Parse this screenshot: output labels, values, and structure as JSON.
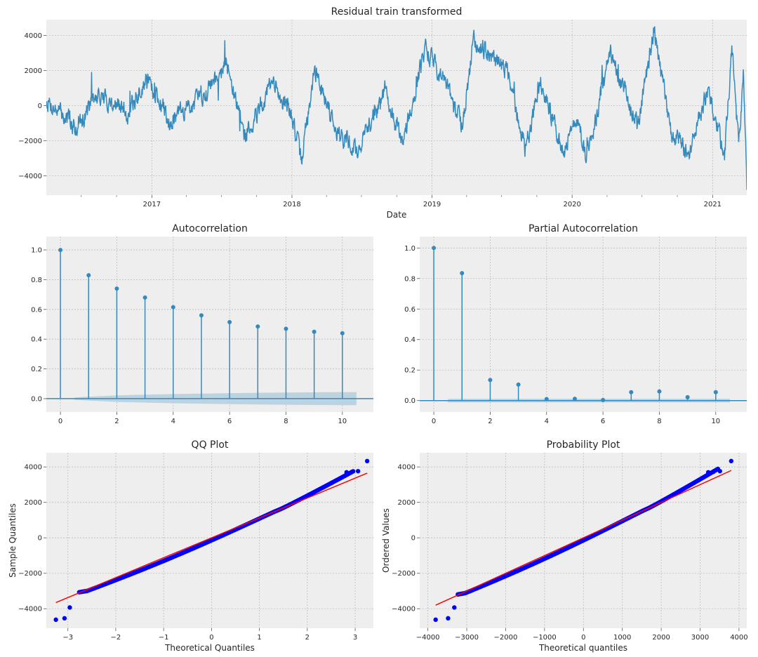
{
  "colors": {
    "axes_bg": "#EEEEEE",
    "grid": "#BDBDBD",
    "series": "#348ABD",
    "conf_band": "#B8CFDE",
    "qq_points": "#0000FF",
    "qq_line": "#FF0000"
  },
  "chart_data": [
    {
      "id": "residual",
      "type": "line",
      "title": "Residual train transformed",
      "xlabel": "Date",
      "ylabel": "",
      "x_ticks": [
        "2017",
        "2018",
        "2019",
        "2020",
        "2021"
      ],
      "xlim": [
        "2016-04-01",
        "2021-03-31"
      ],
      "ylim": [
        -5100,
        4900
      ],
      "y_ticks": [
        -4000,
        -2000,
        0,
        2000,
        4000
      ],
      "grid": true,
      "key_points": [
        {
          "x": "2016-04-01",
          "y": 300
        },
        {
          "x": "2016-06-15",
          "y": -1200
        },
        {
          "x": "2016-08-15",
          "y": 600
        },
        {
          "x": "2016-11-01",
          "y": -400
        },
        {
          "x": "2016-12-20",
          "y": 1600
        },
        {
          "x": "2017-02-15",
          "y": -800
        },
        {
          "x": "2017-05-01",
          "y": 300
        },
        {
          "x": "2017-07-12",
          "y": 2500
        },
        {
          "x": "2017-09-01",
          "y": -1700
        },
        {
          "x": "2017-11-10",
          "y": 1300
        },
        {
          "x": "2018-01-01",
          "y": -500
        },
        {
          "x": "2018-01-25",
          "y": -3200
        },
        {
          "x": "2018-03-01",
          "y": 2000
        },
        {
          "x": "2018-05-01",
          "y": -1500
        },
        {
          "x": "2018-06-20",
          "y": -2600
        },
        {
          "x": "2018-09-01",
          "y": 900
        },
        {
          "x": "2018-10-15",
          "y": -2200
        },
        {
          "x": "2018-12-15",
          "y": 3300
        },
        {
          "x": "2019-02-01",
          "y": 1400
        },
        {
          "x": "2019-03-20",
          "y": -1200
        },
        {
          "x": "2019-04-20",
          "y": 3800
        },
        {
          "x": "2019-07-15",
          "y": 2000
        },
        {
          "x": "2019-09-01",
          "y": -2500
        },
        {
          "x": "2019-10-10",
          "y": 1500
        },
        {
          "x": "2019-12-10",
          "y": -2600
        },
        {
          "x": "2020-01-15",
          "y": -700
        },
        {
          "x": "2020-02-05",
          "y": -3000
        },
        {
          "x": "2020-04-10",
          "y": 2800
        },
        {
          "x": "2020-06-20",
          "y": -1200
        },
        {
          "x": "2020-08-01",
          "y": 4300
        },
        {
          "x": "2020-09-15",
          "y": -1500
        },
        {
          "x": "2020-11-01",
          "y": -2700
        },
        {
          "x": "2020-12-20",
          "y": 1000
        },
        {
          "x": "2021-02-01",
          "y": -2900
        },
        {
          "x": "2021-02-20",
          "y": 3200
        },
        {
          "x": "2021-03-10",
          "y": -2300
        },
        {
          "x": "2021-03-22",
          "y": 1600
        },
        {
          "x": "2021-03-31",
          "y": -4600
        }
      ]
    },
    {
      "id": "acf",
      "type": "stem",
      "title": "Autocorrelation",
      "xlabel": "",
      "ylabel": "",
      "x": [
        0,
        1,
        2,
        3,
        4,
        5,
        6,
        7,
        8,
        9,
        10
      ],
      "y": [
        1.0,
        0.83,
        0.74,
        0.68,
        0.615,
        0.56,
        0.515,
        0.485,
        0.47,
        0.45,
        0.44
      ],
      "conf_band": [
        0,
        0.013,
        0.022,
        0.027,
        0.031,
        0.034,
        0.037,
        0.039,
        0.041,
        0.043,
        0.044
      ],
      "xlim": [
        -0.5,
        11.1
      ],
      "ylim": [
        -0.09,
        1.09
      ],
      "x_ticks": [
        0,
        2,
        4,
        6,
        8,
        10
      ],
      "y_ticks": [
        "0.0",
        "0.2",
        "0.4",
        "0.6",
        "0.8",
        "1.0"
      ],
      "grid": true
    },
    {
      "id": "pacf",
      "type": "stem",
      "title": "Partial Autocorrelation",
      "xlabel": "",
      "ylabel": "",
      "x": [
        0,
        1,
        2,
        3,
        4,
        5,
        6,
        7,
        8,
        9,
        10
      ],
      "y": [
        1.0,
        0.835,
        0.135,
        0.105,
        0.01,
        0.012,
        0.004,
        0.055,
        0.06,
        0.022,
        0.055
      ],
      "conf_band_half_width": 0.012,
      "xlim": [
        -0.5,
        11.1
      ],
      "ylim": [
        -0.075,
        1.075
      ],
      "x_ticks": [
        0,
        2,
        4,
        6,
        8,
        10
      ],
      "y_ticks": [
        "0.0",
        "0.2",
        "0.4",
        "0.6",
        "0.8",
        "1.0"
      ],
      "grid": true
    },
    {
      "id": "qq",
      "type": "scatter",
      "title": "QQ Plot",
      "xlabel": "Theoretical Quantiles",
      "ylabel": "Sample Quantiles",
      "xlim": [
        -3.45,
        3.38
      ],
      "ylim": [
        -5100,
        4800
      ],
      "x_ticks": [
        -3,
        -2,
        -1,
        0,
        1,
        2,
        3
      ],
      "y_ticks": [
        -4000,
        -2000,
        0,
        2000,
        4000
      ],
      "fit_line": {
        "x": [
          -3.25,
          3.25
        ],
        "y": [
          -3650,
          3650
        ]
      },
      "outliers": [
        {
          "x": -3.25,
          "y": -4620
        },
        {
          "x": -3.07,
          "y": -4540
        },
        {
          "x": -2.96,
          "y": -3930
        },
        {
          "x": 2.82,
          "y": 3700
        },
        {
          "x": 2.93,
          "y": 3720
        },
        {
          "x": 3.06,
          "y": 3760
        },
        {
          "x": 3.25,
          "y": 4330
        }
      ],
      "grid": true
    },
    {
      "id": "prob",
      "type": "scatter",
      "title": "Probability Plot",
      "xlabel": "Theoretical quantiles",
      "ylabel": "Ordered Values",
      "xlim": [
        -4210,
        4200
      ],
      "ylim": [
        -5100,
        4800
      ],
      "x_ticks": [
        -4000,
        -3000,
        -2000,
        -1000,
        0,
        1000,
        2000,
        3000,
        4000
      ],
      "y_ticks": [
        -4000,
        -2000,
        0,
        2000,
        4000
      ],
      "fit_line": {
        "x": [
          -3800,
          3800
        ],
        "y": [
          -3800,
          3800
        ]
      },
      "outliers": [
        {
          "x": -3800,
          "y": -4620
        },
        {
          "x": -3480,
          "y": -4540
        },
        {
          "x": -3320,
          "y": -3930
        },
        {
          "x": 3210,
          "y": 3700
        },
        {
          "x": 3340,
          "y": 3720
        },
        {
          "x": 3510,
          "y": 3760
        },
        {
          "x": 3800,
          "y": 4330
        }
      ],
      "grid": true
    }
  ]
}
